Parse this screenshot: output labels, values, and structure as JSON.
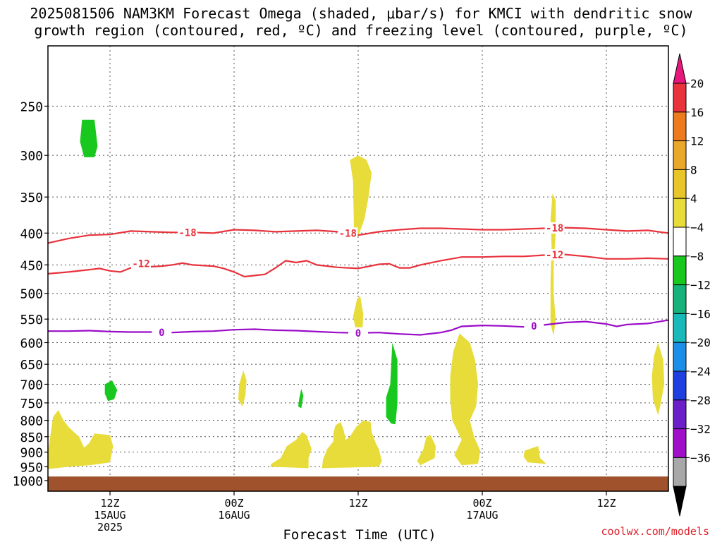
{
  "chart_data": {
    "type": "heatmap",
    "title": [
      "2025081506 NAM3KM Forecast Omega (shaded, μbar/s) for KMCI with dendritic snow",
      "growth region (contoured, red, ºC) and freezing level (contoured, purple, ºC)"
    ],
    "xlabel": "Forecast Time (UTC)",
    "ylabel": "",
    "x_unit": "forecast hour",
    "xlim": [
      6,
      66
    ],
    "y_scale": "log-pressure (inverted)",
    "ylim": [
      1040,
      200
    ],
    "grid": true,
    "y_ticks": [
      250,
      300,
      350,
      400,
      450,
      500,
      550,
      600,
      650,
      700,
      750,
      800,
      850,
      900,
      950,
      1000
    ],
    "x_ticks": [
      {
        "hour": 12,
        "lines": [
          "12Z",
          "15AUG",
          "2025"
        ]
      },
      {
        "hour": 24,
        "lines": [
          "00Z",
          "16AUG"
        ]
      },
      {
        "hour": 36,
        "lines": [
          "12Z"
        ]
      },
      {
        "hour": 48,
        "lines": [
          "00Z",
          "17AUG"
        ]
      },
      {
        "hour": 60,
        "lines": [
          "12Z"
        ]
      }
    ],
    "colorbar": {
      "labels": [
        "20",
        "16",
        "12",
        "8",
        "4",
        "−4",
        "−8",
        "−12",
        "−16",
        "−20",
        "−24",
        "−28",
        "−32",
        "−36"
      ],
      "bands": [
        "#e8323c",
        "#ee7a1e",
        "#e9a82a",
        "#e8c62a",
        "#e8dc3a",
        "#ffffff",
        "#19c81e",
        "#17b27c",
        "#18b9b8",
        "#1b8ee8",
        "#1f3fe0",
        "#6a1fc8",
        "#a010c8",
        "#a8a8a8"
      ],
      "top_arrow_color": "#e8177c",
      "bottom_arrow_color": "#000000"
    },
    "omega_shading": [
      {
        "level": "4",
        "color": "#e8dc3a",
        "regions": [
          [
            [
              6,
              958
            ],
            [
              8,
              950
            ],
            [
              10,
              945
            ],
            [
              12,
              935
            ],
            [
              12.3,
              880
            ],
            [
              12,
              845
            ],
            [
              10.5,
              840
            ],
            [
              10,
              870
            ],
            [
              9.5,
              885
            ],
            [
              9,
              850
            ],
            [
              8.5,
              835
            ],
            [
              8,
              820
            ],
            [
              7.5,
              800
            ],
            [
              7,
              770
            ],
            [
              6.5,
              790
            ],
            [
              6,
              900
            ]
          ],
          [
            [
              35.2,
              305
            ],
            [
              35.5,
              330
            ],
            [
              35.6,
              400
            ],
            [
              36,
              405
            ],
            [
              36.6,
              380
            ],
            [
              37,
              350
            ],
            [
              37.3,
              320
            ],
            [
              36.8,
              305
            ],
            [
              36,
              300
            ]
          ],
          [
            [
              35.5,
              545
            ],
            [
              35.8,
              575
            ],
            [
              36.1,
              590
            ],
            [
              36.4,
              575
            ],
            [
              36.5,
              540
            ],
            [
              36.2,
              505
            ],
            [
              35.9,
              510
            ]
          ],
          [
            [
              24.8,
              760
            ],
            [
              25.1,
              730
            ],
            [
              25.2,
              690
            ],
            [
              24.9,
              665
            ],
            [
              24.5,
              700
            ],
            [
              24.4,
              740
            ]
          ],
          [
            [
              27.5,
              950
            ],
            [
              31.2,
              955
            ],
            [
              31.2,
              920
            ],
            [
              31.5,
              890
            ],
            [
              31,
              845
            ],
            [
              30.6,
              835
            ],
            [
              30,
              860
            ],
            [
              29.1,
              880
            ],
            [
              28.5,
              920
            ],
            [
              27.6,
              940
            ]
          ],
          [
            [
              32.5,
              955
            ],
            [
              38,
              950
            ],
            [
              38.3,
              930
            ],
            [
              38,
              890
            ],
            [
              37.7,
              870
            ],
            [
              37.3,
              835
            ],
            [
              37.2,
              805
            ],
            [
              36.5,
              800
            ],
            [
              35.8,
              820
            ],
            [
              35.2,
              850
            ],
            [
              34.8,
              860
            ],
            [
              34.6,
              830
            ],
            [
              34.3,
              805
            ],
            [
              33.8,
              815
            ],
            [
              33.6,
              840
            ],
            [
              33.6,
              865
            ],
            [
              33,
              890
            ],
            [
              32.6,
              925
            ]
          ],
          [
            [
              42,
              945
            ],
            [
              43.4,
              920
            ],
            [
              43.5,
              880
            ],
            [
              43,
              845
            ],
            [
              42.6,
              850
            ],
            [
              42.3,
              890
            ],
            [
              41.7,
              930
            ]
          ],
          [
            [
              45.8,
              580
            ],
            [
              46.8,
              600
            ],
            [
              47.3,
              640
            ],
            [
              47.6,
              700
            ],
            [
              47.4,
              760
            ],
            [
              46.8,
              800
            ],
            [
              47.2,
              850
            ],
            [
              47.8,
              895
            ],
            [
              47.6,
              940
            ],
            [
              46,
              945
            ],
            [
              45.3,
              910
            ],
            [
              46,
              860
            ],
            [
              45.1,
              800
            ],
            [
              44.9,
              740
            ],
            [
              44.9,
              680
            ],
            [
              45.2,
              620
            ]
          ],
          [
            [
              54.8,
              345
            ],
            [
              55.1,
              355
            ],
            [
              55.1,
              400
            ],
            [
              54.9,
              450
            ],
            [
              54.9,
              500
            ],
            [
              55.1,
              550
            ],
            [
              54.9,
              585
            ],
            [
              54.6,
              560
            ],
            [
              54.6,
              480
            ],
            [
              54.7,
              420
            ],
            [
              54.6,
              380
            ]
          ],
          [
            [
              52.1,
              895
            ],
            [
              53.4,
              880
            ],
            [
              53.6,
              920
            ],
            [
              54.2,
              940
            ],
            [
              52.4,
              935
            ],
            [
              52,
              915
            ]
          ],
          [
            [
              65,
              600
            ],
            [
              65.5,
              640
            ],
            [
              65.6,
              700
            ],
            [
              65.2,
              760
            ],
            [
              65,
              785
            ],
            [
              64.5,
              740
            ],
            [
              64.4,
              680
            ],
            [
              64.6,
              630
            ]
          ]
        ]
      },
      {
        "level": "-4",
        "color": "#19c81e",
        "regions": [
          [
            [
              9.3,
              263
            ],
            [
              10.5,
              263
            ],
            [
              10.8,
              290
            ],
            [
              10.5,
              302
            ],
            [
              9.5,
              302
            ],
            [
              9.1,
              285
            ]
          ],
          [
            [
              11.5,
              700
            ],
            [
              12.2,
              690
            ],
            [
              12.7,
              715
            ],
            [
              12.4,
              740
            ],
            [
              11.8,
              745
            ],
            [
              11.5,
              725
            ]
          ],
          [
            [
              30.2,
              760
            ],
            [
              30.5,
              765
            ],
            [
              30.7,
              730
            ],
            [
              30.5,
              712
            ],
            [
              30.3,
              738
            ]
          ],
          [
            [
              39.3,
              600
            ],
            [
              39.8,
              640
            ],
            [
              39.8,
              750
            ],
            [
              39.6,
              812
            ],
            [
              39.2,
              810
            ],
            [
              38.7,
              790
            ],
            [
              38.7,
              735
            ],
            [
              39.1,
              700
            ],
            [
              39.2,
              650
            ]
          ]
        ]
      }
    ],
    "temperature_contours": [
      {
        "label": "-18",
        "color": "#e8323c",
        "points": [
          [
            6,
            415
          ],
          [
            8,
            408
          ],
          [
            10,
            403
          ],
          [
            12,
            402
          ],
          [
            14,
            397
          ],
          [
            16,
            398
          ],
          [
            18,
            399
          ],
          [
            20,
            399
          ],
          [
            22,
            400
          ],
          [
            24,
            395
          ],
          [
            26,
            396
          ],
          [
            28,
            398
          ],
          [
            30,
            397
          ],
          [
            32,
            396
          ],
          [
            34,
            398
          ],
          [
            35,
            400
          ],
          [
            36,
            403
          ],
          [
            38,
            398
          ],
          [
            40,
            395
          ],
          [
            42,
            393
          ],
          [
            44,
            393
          ],
          [
            46,
            394
          ],
          [
            48,
            395
          ],
          [
            50,
            395
          ],
          [
            52,
            394
          ],
          [
            54,
            393
          ],
          [
            56,
            392
          ],
          [
            58,
            393
          ],
          [
            60,
            395
          ],
          [
            62,
            397
          ],
          [
            64,
            396
          ],
          [
            66,
            400
          ]
        ],
        "labels_at": [
          19.5,
          35,
          55
        ]
      },
      {
        "label": "-12",
        "color": "#e8323c",
        "points": [
          [
            6,
            465
          ],
          [
            8,
            462
          ],
          [
            10,
            458
          ],
          [
            11,
            456
          ],
          [
            12,
            460
          ],
          [
            13,
            462
          ],
          [
            14,
            455
          ],
          [
            15,
            448
          ],
          [
            16,
            453
          ],
          [
            17,
            452
          ],
          [
            18,
            450
          ],
          [
            19,
            447
          ],
          [
            20,
            450
          ],
          [
            22,
            452
          ],
          [
            23,
            456
          ],
          [
            24,
            462
          ],
          [
            25,
            470
          ],
          [
            26,
            468
          ],
          [
            27,
            466
          ],
          [
            28,
            455
          ],
          [
            29,
            443
          ],
          [
            30,
            446
          ],
          [
            31,
            443
          ],
          [
            32,
            450
          ],
          [
            34,
            454
          ],
          [
            36,
            456
          ],
          [
            38,
            449
          ],
          [
            39,
            448
          ],
          [
            40,
            455
          ],
          [
            41,
            455
          ],
          [
            42,
            450
          ],
          [
            44,
            443
          ],
          [
            46,
            437
          ],
          [
            48,
            437
          ],
          [
            50,
            436
          ],
          [
            52,
            436
          ],
          [
            54,
            434
          ],
          [
            56,
            433
          ],
          [
            58,
            436
          ],
          [
            60,
            440
          ],
          [
            62,
            440
          ],
          [
            64,
            439
          ],
          [
            66,
            440
          ]
        ],
        "labels_at": [
          15,
          55
        ]
      },
      {
        "label": "0",
        "color": "#9a0bc8",
        "points": [
          [
            6,
            575
          ],
          [
            8,
            575
          ],
          [
            10,
            574
          ],
          [
            12,
            576
          ],
          [
            14,
            577
          ],
          [
            16,
            577
          ],
          [
            18,
            578
          ],
          [
            20,
            576
          ],
          [
            22,
            575
          ],
          [
            24,
            572
          ],
          [
            26,
            571
          ],
          [
            28,
            573
          ],
          [
            30,
            574
          ],
          [
            32,
            576
          ],
          [
            34,
            578
          ],
          [
            36,
            579
          ],
          [
            38,
            578
          ],
          [
            40,
            581
          ],
          [
            42,
            583
          ],
          [
            44,
            578
          ],
          [
            45,
            573
          ],
          [
            46,
            565
          ],
          [
            48,
            563
          ],
          [
            50,
            564
          ],
          [
            52,
            566
          ],
          [
            54,
            562
          ],
          [
            56,
            557
          ],
          [
            58,
            555
          ],
          [
            60,
            560
          ],
          [
            61,
            565
          ],
          [
            62,
            561
          ],
          [
            64,
            559
          ],
          [
            66,
            552
          ]
        ],
        "labels_at": [
          17,
          36,
          53
        ]
      }
    ],
    "ground": {
      "color": "#a0522d",
      "from_pressure": 985
    }
  },
  "watermark": "coolwx.com/models"
}
